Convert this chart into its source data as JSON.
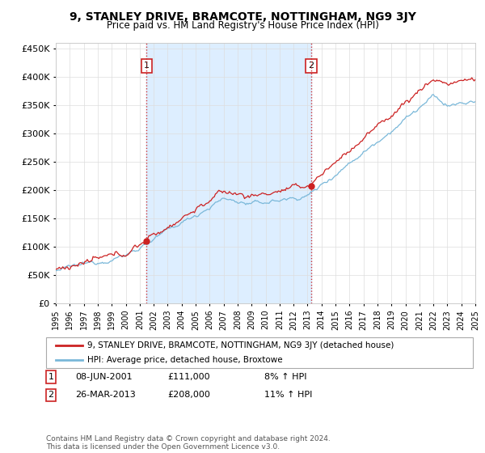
{
  "title": "9, STANLEY DRIVE, BRAMCOTE, NOTTINGHAM, NG9 3JY",
  "subtitle": "Price paid vs. HM Land Registry's House Price Index (HPI)",
  "ylim": [
    0,
    460000
  ],
  "yticks": [
    0,
    50000,
    100000,
    150000,
    200000,
    250000,
    300000,
    350000,
    400000,
    450000
  ],
  "start_year": 1995,
  "end_year": 2025,
  "hpi_color": "#7ab8d9",
  "price_color": "#cc2222",
  "vline_color": "#cc2222",
  "shade_color": "#ddeeff",
  "annotation1": {
    "label": "1",
    "date": "08-JUN-2001",
    "price": "£111,000",
    "pct": "8% ↑ HPI"
  },
  "annotation2": {
    "label": "2",
    "date": "26-MAR-2013",
    "price": "£208,000",
    "pct": "11% ↑ HPI"
  },
  "sale1_month": 78,
  "sale1_price": 111000,
  "sale2_month": 219,
  "sale2_price": 208000,
  "legend_house": "9, STANLEY DRIVE, BRAMCOTE, NOTTINGHAM, NG9 3JY (detached house)",
  "legend_hpi": "HPI: Average price, detached house, Broxtowe",
  "footnote": "Contains HM Land Registry data © Crown copyright and database right 2024.\nThis data is licensed under the Open Government Licence v3.0.",
  "background_color": "#ffffff",
  "plot_bg_color": "#ffffff",
  "grid_color": "#dddddd"
}
